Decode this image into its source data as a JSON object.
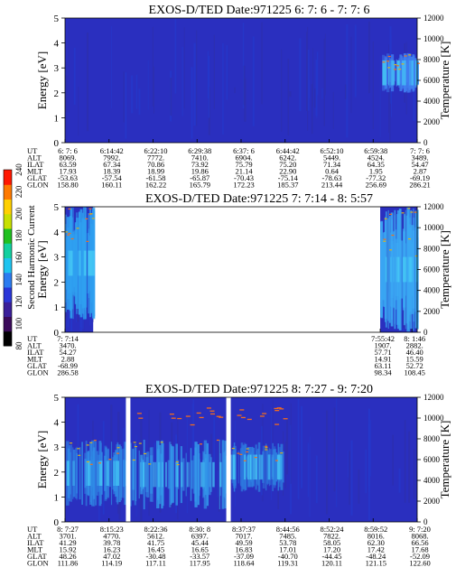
{
  "colorbar": {
    "label": "Second Harmonic Current",
    "ticks": [
      "80",
      "100",
      "120",
      "140",
      "160",
      "180",
      "200",
      "220",
      "240"
    ]
  },
  "chart_data": [
    {
      "type": "heatmap",
      "title": "EXOS-D/TED   Date:971225  6: 7: 6 - 7: 7: 6",
      "ylabel": "Energy [eV]",
      "y2label": "Temperature [K]",
      "ylim": [
        0,
        5
      ],
      "y2lim": [
        0,
        12000
      ],
      "yticks": [
        "0",
        "1",
        "2",
        "3",
        "4",
        "5"
      ],
      "y2ticks": [
        "0",
        "2000",
        "4000",
        "6000",
        "8000",
        "10000",
        "12000"
      ],
      "background": "#2a2fbf",
      "rows": [
        "UT",
        "ALT",
        "ILAT",
        "MLT",
        "GLAT",
        "GLON"
      ],
      "columns": [
        [
          "6: 7: 6",
          "8069.",
          "63.59",
          "17.93",
          "-53.63",
          "158.80"
        ],
        [
          "6:14:42",
          "7992.",
          "67.34",
          "18.39",
          "-57.54",
          "160.11"
        ],
        [
          "6:22:10",
          "7772.",
          "70.86",
          "18.99",
          "-61.58",
          "162.22"
        ],
        [
          "6:29:38",
          "7410.",
          "73.92",
          "19.86",
          "-65.87",
          "165.79"
        ],
        [
          "6:37: 6",
          "6904.",
          "75.79",
          "21.14",
          "-70.43",
          "172.23"
        ],
        [
          "6:44:42",
          "6242.",
          "75.20",
          "22.90",
          "-75.14",
          "185.37"
        ],
        [
          "6:52:10",
          "5449.",
          "71.34",
          "0.64",
          "-78.63",
          "213.44"
        ],
        [
          "6:59:38",
          "4524.",
          "64.35",
          "1.95",
          "-77.32",
          "256.69"
        ],
        [
          "7: 7: 6",
          "3489.",
          "54.47",
          "2.87",
          "-69.19",
          "286.21"
        ]
      ],
      "features": [
        {
          "label": "streaks",
          "x0": 0.0,
          "x1": 1.0,
          "e0": 0.0,
          "e1": 5.0,
          "color": "#2436c8"
        },
        {
          "label": "hot spot",
          "x0": 0.9,
          "x1": 1.0,
          "e0": 2.0,
          "e1": 3.6,
          "color": "#3f7ff0"
        }
      ]
    },
    {
      "type": "heatmap",
      "title": "EXOS-D/TED   Date:971225  7: 7:14 - 8: 5:57",
      "ylabel": "Energy [eV]",
      "y2label": "Temperature [K]",
      "ylim": [
        0,
        5
      ],
      "y2lim": [
        0,
        12000
      ],
      "yticks": [
        "0",
        "1",
        "2",
        "3",
        "4",
        "5"
      ],
      "y2ticks": [
        "0",
        "2000",
        "4000",
        "6000",
        "8000",
        "10000",
        "12000"
      ],
      "background": "#ffffff",
      "data_segments": [
        [
          0.0,
          0.08
        ],
        [
          0.895,
          1.0
        ]
      ],
      "rows": [
        "UT",
        "ALT",
        "ILAT",
        "MLT",
        "GLAT",
        "GLON"
      ],
      "columns_left": [
        [
          "7: 7:14",
          "3470.",
          "54.27",
          "2.88",
          "-68.99",
          "286.58"
        ]
      ],
      "columns_right": [
        [
          "7:55:42",
          "1907.",
          "57.71",
          "14.91",
          "63.11",
          "98.34"
        ],
        [
          "8: 1:46",
          "2882.",
          "46.40",
          "15.59",
          "52.72",
          "108.45"
        ]
      ],
      "features": [
        {
          "label": "left burst",
          "x0": 0.0,
          "x1": 0.08,
          "e0": 0.5,
          "e1": 5.0,
          "color": "#2fa0f0"
        },
        {
          "label": "right block",
          "x0": 0.895,
          "x1": 1.0,
          "e0": 0.0,
          "e1": 5.0,
          "color": "#3aa7f3"
        }
      ]
    },
    {
      "type": "heatmap",
      "title": "EXOS-D/TED   Date:971225  8: 7:27 - 9: 7:20",
      "ylabel": "Energy [eV]",
      "y2label": "Temperature [K]",
      "ylim": [
        0,
        5
      ],
      "y2lim": [
        0,
        12000
      ],
      "yticks": [
        "0",
        "1",
        "2",
        "3",
        "4",
        "5"
      ],
      "y2ticks": [
        "0",
        "2000",
        "4000",
        "6000",
        "8000",
        "10000",
        "12000"
      ],
      "background": "#2a2fbf",
      "rows": [
        "UT",
        "ALT",
        "ILAT",
        "MLT",
        "GLAT",
        "GLON"
      ],
      "columns": [
        [
          "8: 7:27",
          "3701.",
          "41.29",
          "15.92",
          "48.26",
          "111.86"
        ],
        [
          "8:15:23",
          "4770.",
          "39.78",
          "16.23",
          "47.02",
          "114.19"
        ],
        [
          "8:22:36",
          "5612.",
          "41.75",
          "16.45",
          "-30.48",
          "117.11"
        ],
        [
          "8:30: 8",
          "6397.",
          "45.44",
          "16.65",
          "-33.57",
          "117.95"
        ],
        [
          "8:37:37",
          "7017.",
          "49.59",
          "16.83",
          "-37.09",
          "118.64"
        ],
        [
          "8:44:56",
          "7485.",
          "53.78",
          "17.01",
          "-40.70",
          "119.31"
        ],
        [
          "8:52:24",
          "7822.",
          "58.05",
          "17.20",
          "-44.45",
          "120.11"
        ],
        [
          "8:59:52",
          "8016.",
          "62.30",
          "17.42",
          "-48.24",
          "121.15"
        ],
        [
          "9: 7:20",
          "8068.",
          "66.56",
          "17.68",
          "-52.09",
          "122.60"
        ]
      ],
      "gaps": [
        0.178,
        0.463
      ],
      "features": [
        {
          "label": "band left",
          "x0": 0.0,
          "x1": 0.178,
          "e0": 0.6,
          "e1": 3.3,
          "color": "#2f8ae6"
        },
        {
          "label": "band mid",
          "x0": 0.183,
          "x1": 0.463,
          "e0": 0.5,
          "e1": 3.3,
          "color": "#3398ea"
        },
        {
          "label": "band right",
          "x0": 0.468,
          "x1": 0.62,
          "e0": 1.2,
          "e1": 3.2,
          "color": "#2d7de0"
        }
      ]
    }
  ]
}
